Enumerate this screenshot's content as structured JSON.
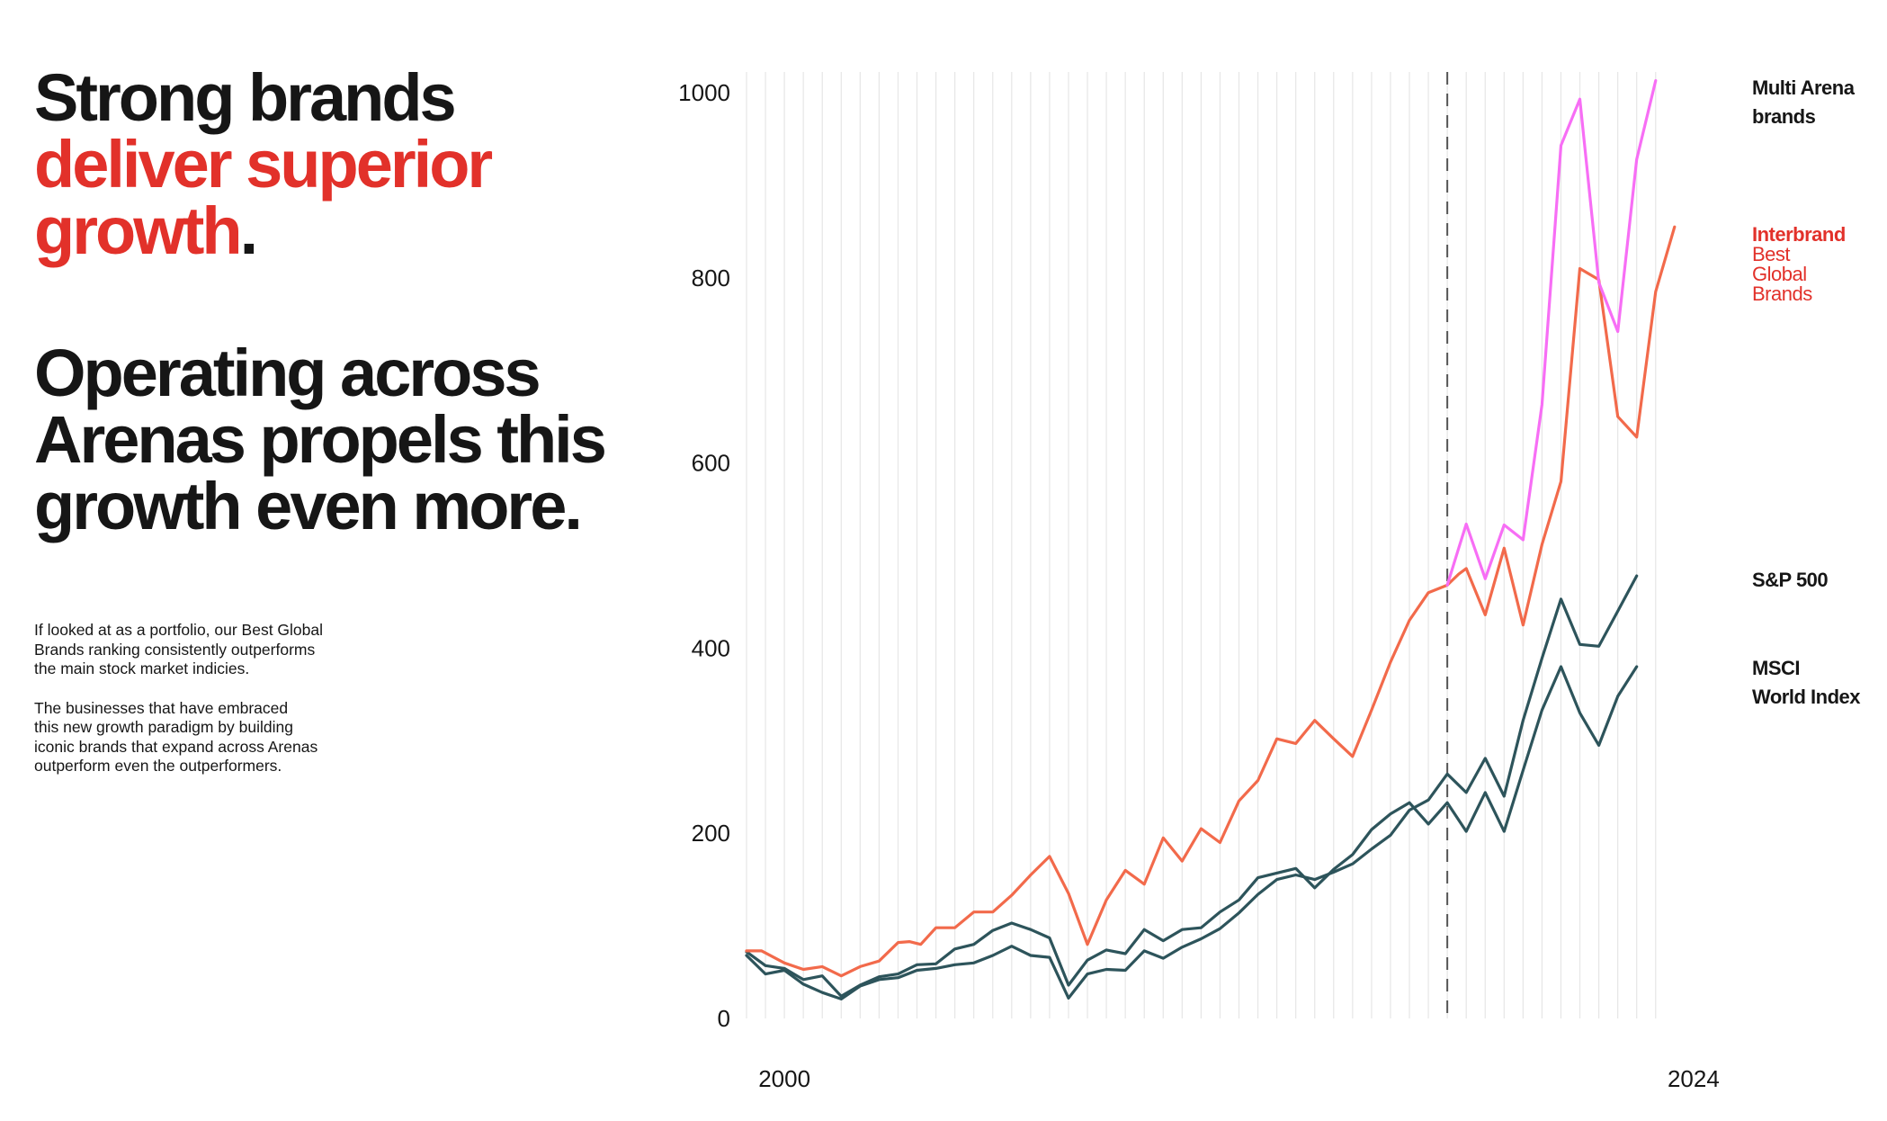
{
  "headline": {
    "line1": "Strong brands",
    "accent_line2": "deliver superior",
    "accent_line3": "growth",
    "period": ".",
    "second_line1": "Operating across",
    "second_line2": "Arenas propels this",
    "second_line3": "growth even more."
  },
  "copy": {
    "p1_l1": "If looked at as a portfolio, our Best Global",
    "p1_l2": "Brands ranking consistently outperforms",
    "p1_l3": "the main stock market indicies.",
    "p2_l1": "The businesses that have embraced",
    "p2_l2": "this new growth paradigm by building",
    "p2_l3": "iconic brands that expand across Arenas",
    "p2_l4": "outperform even the outperformers."
  },
  "colors": {
    "accent": "#e2312a",
    "interbrand": "#f26a4b",
    "multi_arena": "#f76ef5",
    "index": "#2d545b",
    "grid": "#e6e6e6"
  },
  "chart_data": {
    "type": "line",
    "xlim": [
      1999,
      2025
    ],
    "ylim": [
      0,
      1000
    ],
    "yticks": [
      0,
      200,
      400,
      600,
      800,
      1000
    ],
    "xtick_labels": [
      "2000",
      "2024"
    ],
    "xtick_values": [
      2000,
      2024
    ],
    "grid": "vertical",
    "dashed_marker_x": 2017.5,
    "series": [
      {
        "name": "Interbrand Best Global Brands",
        "label_lines": [
          "Interbrand",
          "Best",
          "Global",
          "Brands"
        ],
        "color": "#f26a4b",
        "points": [
          [
            1999.0,
            73
          ],
          [
            1999.4,
            73
          ],
          [
            2000.0,
            60
          ],
          [
            2000.5,
            53
          ],
          [
            2001.0,
            56
          ],
          [
            2001.5,
            46
          ],
          [
            2002.0,
            56
          ],
          [
            2002.5,
            62
          ],
          [
            2003.0,
            82
          ],
          [
            2003.3,
            83
          ],
          [
            2003.6,
            80
          ],
          [
            2004.0,
            98
          ],
          [
            2004.5,
            98
          ],
          [
            2005.0,
            115
          ],
          [
            2005.5,
            115
          ],
          [
            2006.0,
            133
          ],
          [
            2006.5,
            155
          ],
          [
            2007.0,
            175
          ],
          [
            2007.5,
            135
          ],
          [
            2008.0,
            80
          ],
          [
            2008.5,
            128
          ],
          [
            2009.0,
            160
          ],
          [
            2009.5,
            145
          ],
          [
            2010.0,
            195
          ],
          [
            2010.5,
            170
          ],
          [
            2011.0,
            205
          ],
          [
            2011.5,
            190
          ],
          [
            2012.0,
            235
          ],
          [
            2012.5,
            257
          ],
          [
            2013.0,
            302
          ],
          [
            2013.5,
            297
          ],
          [
            2014.0,
            322
          ],
          [
            2014.5,
            302
          ],
          [
            2015.0,
            283
          ],
          [
            2015.5,
            333
          ],
          [
            2016.0,
            385
          ],
          [
            2016.5,
            430
          ],
          [
            2017.0,
            460
          ],
          [
            2017.5,
            468
          ],
          [
            2017.8,
            480
          ],
          [
            2018.0,
            486
          ],
          [
            2018.5,
            436
          ],
          [
            2019.0,
            508
          ],
          [
            2019.5,
            425
          ],
          [
            2020.0,
            512
          ],
          [
            2020.5,
            580
          ],
          [
            2021.0,
            810
          ],
          [
            2021.5,
            798
          ],
          [
            2022.0,
            650
          ],
          [
            2022.5,
            628
          ],
          [
            2023.0,
            785
          ],
          [
            2023.5,
            855
          ]
        ]
      },
      {
        "name": "Multi Arena brands",
        "label_lines": [
          "Multi Arena",
          "brands"
        ],
        "color": "#f76ef5",
        "points": [
          [
            2017.5,
            468
          ],
          [
            2017.8,
            508
          ],
          [
            2018.0,
            534
          ],
          [
            2018.5,
            475
          ],
          [
            2019.0,
            533
          ],
          [
            2019.5,
            517
          ],
          [
            2020.0,
            663
          ],
          [
            2020.5,
            943
          ],
          [
            2021.0,
            993
          ],
          [
            2021.5,
            795
          ],
          [
            2022.0,
            742
          ],
          [
            2022.5,
            928
          ],
          [
            2023.0,
            1013
          ]
        ]
      },
      {
        "name": "S&P 500",
        "label_lines": [
          "S&P 500"
        ],
        "color": "#2d545b",
        "points": [
          [
            1999.0,
            72
          ],
          [
            1999.5,
            57
          ],
          [
            2000.0,
            54
          ],
          [
            2000.5,
            42
          ],
          [
            2001.0,
            46
          ],
          [
            2001.5,
            24
          ],
          [
            2002.0,
            36
          ],
          [
            2002.5,
            45
          ],
          [
            2003.0,
            48
          ],
          [
            2003.5,
            58
          ],
          [
            2004.0,
            59
          ],
          [
            2004.5,
            75
          ],
          [
            2005.0,
            80
          ],
          [
            2005.5,
            95
          ],
          [
            2006.0,
            103
          ],
          [
            2006.5,
            96
          ],
          [
            2007.0,
            87
          ],
          [
            2007.5,
            36
          ],
          [
            2008.0,
            63
          ],
          [
            2008.5,
            74
          ],
          [
            2009.0,
            70
          ],
          [
            2009.5,
            96
          ],
          [
            2010.0,
            84
          ],
          [
            2010.5,
            96
          ],
          [
            2011.0,
            98
          ],
          [
            2011.5,
            115
          ],
          [
            2012.0,
            128
          ],
          [
            2012.5,
            152
          ],
          [
            2013.0,
            157
          ],
          [
            2013.5,
            162
          ],
          [
            2014.0,
            141
          ],
          [
            2014.5,
            161
          ],
          [
            2015.0,
            177
          ],
          [
            2015.5,
            204
          ],
          [
            2016.0,
            221
          ],
          [
            2016.5,
            233
          ],
          [
            2017.0,
            210
          ],
          [
            2017.5,
            233
          ],
          [
            2018.0,
            202
          ],
          [
            2018.5,
            244
          ],
          [
            2019.0,
            202
          ],
          [
            2019.5,
            268
          ],
          [
            2020.0,
            333
          ],
          [
            2020.5,
            380
          ],
          [
            2021.0,
            330
          ],
          [
            2021.5,
            295
          ],
          [
            2022.0,
            348
          ],
          [
            2022.5,
            380
          ]
        ]
      },
      {
        "name": "MSCI World Index",
        "label_lines": [
          "MSCI",
          "World Index"
        ],
        "color": "#2d545b",
        "points": [
          [
            1999.0,
            68
          ],
          [
            1999.5,
            48
          ],
          [
            2000.0,
            52
          ],
          [
            2000.5,
            37
          ],
          [
            2001.0,
            28
          ],
          [
            2001.5,
            21
          ],
          [
            2002.0,
            35
          ],
          [
            2002.5,
            42
          ],
          [
            2003.0,
            44
          ],
          [
            2003.5,
            52
          ],
          [
            2004.0,
            54
          ],
          [
            2004.5,
            58
          ],
          [
            2005.0,
            60
          ],
          [
            2005.5,
            68
          ],
          [
            2006.0,
            78
          ],
          [
            2006.5,
            68
          ],
          [
            2007.0,
            66
          ],
          [
            2007.5,
            22
          ],
          [
            2008.0,
            48
          ],
          [
            2008.5,
            53
          ],
          [
            2009.0,
            52
          ],
          [
            2009.5,
            73
          ],
          [
            2010.0,
            65
          ],
          [
            2010.5,
            77
          ],
          [
            2011.0,
            86
          ],
          [
            2011.5,
            97
          ],
          [
            2012.0,
            114
          ],
          [
            2012.5,
            134
          ],
          [
            2013.0,
            150
          ],
          [
            2013.5,
            155
          ],
          [
            2014.0,
            150
          ],
          [
            2014.5,
            158
          ],
          [
            2015.0,
            167
          ],
          [
            2015.5,
            183
          ],
          [
            2016.0,
            198
          ],
          [
            2016.5,
            225
          ],
          [
            2017.0,
            236
          ],
          [
            2017.5,
            264
          ],
          [
            2018.0,
            244
          ],
          [
            2018.5,
            281
          ],
          [
            2019.0,
            240
          ],
          [
            2019.5,
            322
          ],
          [
            2020.0,
            389
          ],
          [
            2020.5,
            453
          ],
          [
            2021.0,
            404
          ],
          [
            2021.5,
            402
          ],
          [
            2022.0,
            440
          ],
          [
            2022.5,
            478
          ]
        ]
      }
    ]
  }
}
